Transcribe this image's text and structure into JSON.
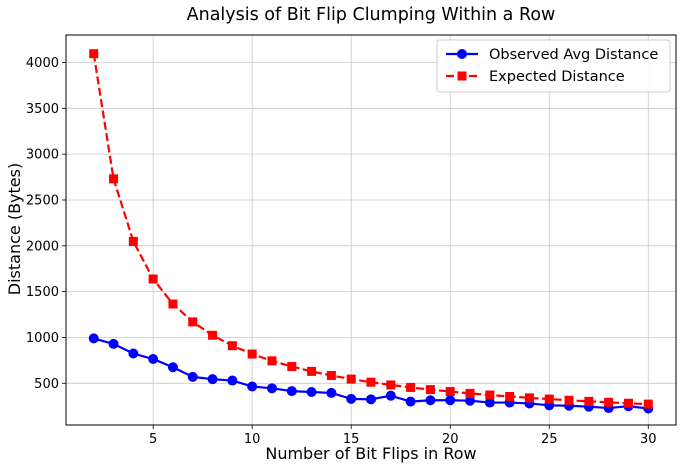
{
  "chart_data": {
    "type": "line",
    "title": "Analysis of Bit Flip Clumping Within a Row",
    "xlabel": "Number of Bit Flips in Row",
    "ylabel": "Distance (Bytes)",
    "x": [
      2,
      3,
      4,
      5,
      6,
      7,
      8,
      9,
      10,
      11,
      12,
      13,
      14,
      15,
      16,
      17,
      18,
      19,
      20,
      21,
      22,
      23,
      24,
      25,
      26,
      27,
      28,
      29,
      30
    ],
    "xlim": [
      0.6,
      31.4
    ],
    "ylim": [
      45,
      4300
    ],
    "xticks": [
      5,
      10,
      15,
      20,
      25,
      30
    ],
    "yticks": [
      500,
      1000,
      1500,
      2000,
      2500,
      3000,
      3500,
      4000
    ],
    "grid": true,
    "legend_position": "top-right",
    "series": [
      {
        "name": "Observed Avg Distance",
        "color": "#0000ff",
        "marker": "circle",
        "linestyle": "solid",
        "values": [
          990,
          930,
          825,
          765,
          675,
          570,
          545,
          530,
          465,
          445,
          415,
          405,
          395,
          330,
          325,
          365,
          300,
          315,
          315,
          310,
          290,
          290,
          280,
          260,
          255,
          245,
          230,
          250,
          225
        ]
      },
      {
        "name": "Expected Distance",
        "color": "#ff0000",
        "marker": "square",
        "linestyle": "dashed",
        "values": [
          4096,
          2731,
          2048,
          1638,
          1365,
          1170,
          1024,
          910,
          819,
          745,
          683,
          630,
          585,
          546,
          512,
          482,
          455,
          431,
          410,
          390,
          372,
          356,
          341,
          328,
          315,
          303,
          293,
          282,
          273
        ]
      }
    ]
  }
}
